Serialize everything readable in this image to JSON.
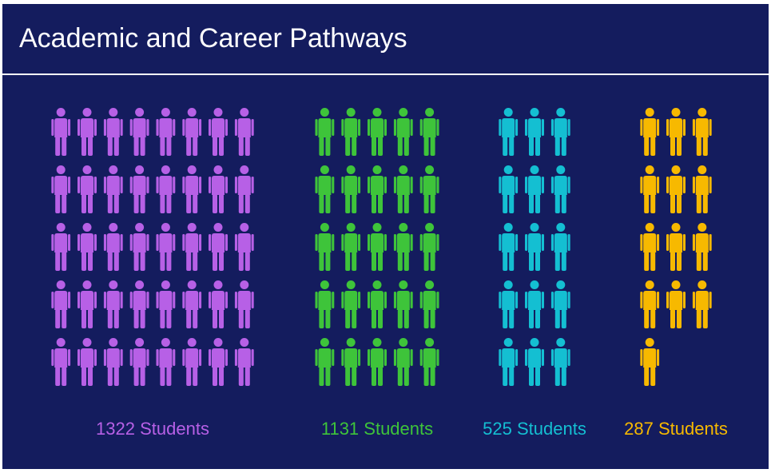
{
  "chart_data": {
    "type": "pictogram",
    "title": "Academic and Career Pathways",
    "values": [
      1322,
      1131,
      525,
      287
    ],
    "value_labels": [
      "1322 Students",
      "1131 Students",
      "525 Students",
      "287 Students"
    ],
    "icons": [
      40,
      25,
      15,
      13
    ],
    "icon_columns": [
      8,
      5,
      3,
      3
    ],
    "colors": [
      "#b760e6",
      "#3ec43a",
      "#14bfd2",
      "#f7b900"
    ]
  }
}
